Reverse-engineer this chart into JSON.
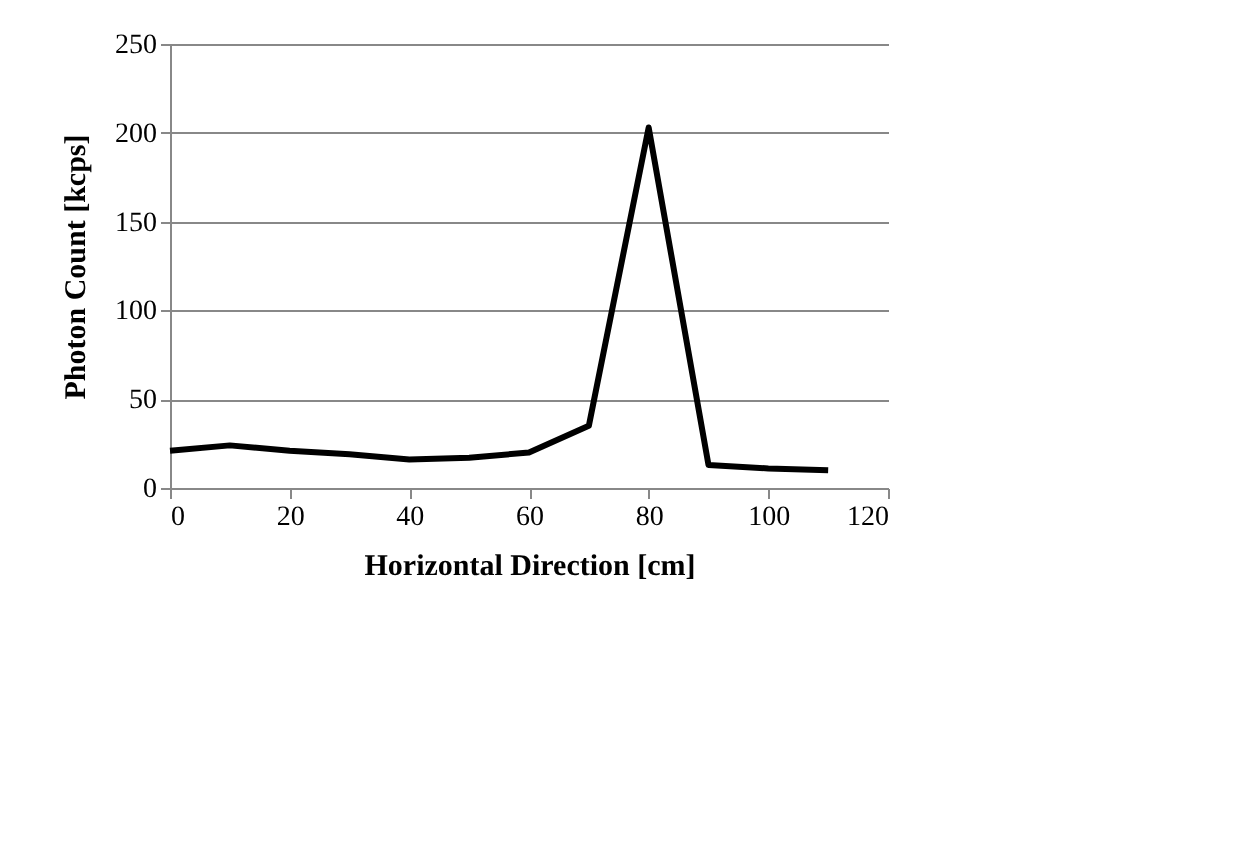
{
  "chart_data": {
    "type": "line",
    "xlabel": "Horizontal Direction [cm]",
    "ylabel": "Photon Count [kcps]",
    "x": [
      0,
      10,
      20,
      30,
      40,
      50,
      60,
      70,
      80,
      90,
      100,
      110
    ],
    "series": [
      {
        "color": "#000000",
        "values": [
          21,
          24,
          21,
          19,
          16,
          17,
          20,
          35,
          203,
          13,
          11,
          10
        ]
      }
    ],
    "xlim": [
      0,
      120
    ],
    "xticks": [
      0,
      20,
      40,
      60,
      80,
      100,
      120
    ],
    "ylim": [
      0,
      250
    ],
    "yticks": [
      0,
      50,
      100,
      150,
      200,
      250
    ],
    "grid": "y",
    "marker": "none",
    "line_style": "solid"
  }
}
